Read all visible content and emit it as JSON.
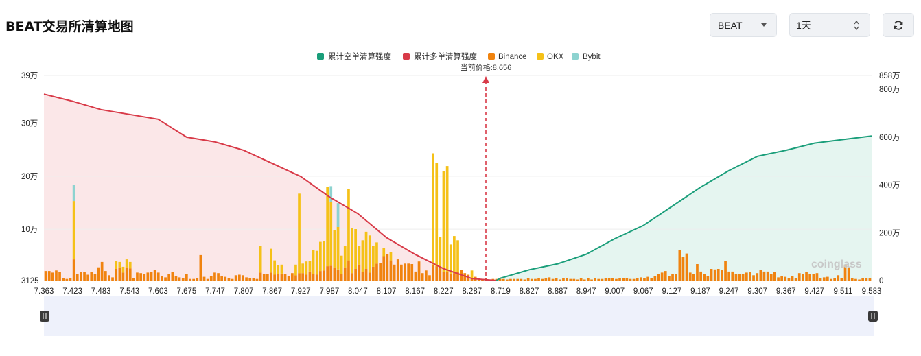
{
  "header": {
    "title": "BEAT交易所清算地图",
    "symbol_select": "BEAT",
    "range_select": "1天"
  },
  "colors": {
    "short_line": "#1a9e7a",
    "long_line": "#d83a48",
    "binance": "#f0830f",
    "okx": "#f5c118",
    "bybit": "#8dd3d0",
    "long_fill": "#fbe4e6",
    "short_fill": "#e2f4ee"
  },
  "chart_data": {
    "type": "bar",
    "current_price_label": "当前价格:8.656",
    "current_price": 8.656,
    "legend": [
      "累计空单清算强度",
      "累计多单清算强度",
      "Binance",
      "OKX",
      "Bybit"
    ],
    "left_axis_ticks": [
      "39万",
      "30万",
      "20万",
      "10万",
      "3125"
    ],
    "left_axis_values": [
      390000,
      300000,
      200000,
      100000,
      3125
    ],
    "right_axis_ticks": [
      "858万",
      "800万",
      "600万",
      "400万",
      "200万",
      "0"
    ],
    "right_axis_values": [
      8580000,
      8000000,
      6000000,
      4000000,
      2000000,
      0
    ],
    "x_tick_labels": [
      "7.363",
      "7.423",
      "7.483",
      "7.543",
      "7.603",
      "7.675",
      "7.747",
      "7.807",
      "7.867",
      "7.927",
      "7.987",
      "8.047",
      "8.107",
      "8.167",
      "8.227",
      "8.287",
      "8.719",
      "8.827",
      "8.887",
      "8.947",
      "9.007",
      "9.067",
      "9.127",
      "9.187",
      "9.247",
      "9.307",
      "9.367",
      "9.427",
      "9.511",
      "9.583"
    ],
    "watermark": "coinglass",
    "series": [
      {
        "name": "Binance",
        "values": [
          18000,
          18000,
          15000,
          19000,
          16000,
          5000,
          3000,
          5000,
          40000,
          12000,
          16000,
          16000,
          11000,
          16000,
          12000,
          25000,
          35000,
          18000,
          10000,
          6000,
          22000,
          25000,
          15000,
          25000,
          23000,
          5000,
          15000,
          14000,
          12000,
          15000,
          16000,
          20000,
          15000,
          8000,
          6000,
          12000,
          16000,
          9000,
          6000,
          5000,
          12000,
          3000,
          3000,
          5000,
          48000,
          7000,
          3000,
          9000,
          15000,
          14000,
          9000,
          7000,
          4000,
          3000,
          10000,
          11000,
          10000,
          6000,
          5000,
          4000,
          3000,
          15000,
          13000,
          13000,
          15000,
          11000,
          12000,
          13000,
          12000,
          9000,
          14000,
          10000,
          14000,
          14000,
          11000,
          17000,
          12000,
          11000,
          18000,
          19000,
          27000,
          28000,
          25000,
          21000,
          12000,
          25000,
          38000,
          14000,
          22000,
          30000,
          16000,
          22000,
          15000,
          26000,
          32000,
          33000,
          46000,
          50000,
          38000,
          30000,
          40000,
          30000,
          32000,
          32000,
          31000,
          17000,
          36000,
          14000,
          19000,
          10000,
          30000,
          27000,
          27000,
          16000,
          16000,
          13000,
          14000,
          16000,
          20000,
          14000,
          11000,
          4000,
          7000,
          4000,
          3000,
          4000,
          2000,
          3000,
          3000,
          3000,
          3000,
          2000,
          3000,
          3000,
          3000,
          3000,
          2000,
          5000,
          3000,
          3000,
          4000,
          3000,
          5000,
          6000,
          3000,
          5000,
          2000,
          4000,
          5000,
          3000,
          3000,
          2000,
          5000,
          2000,
          4000,
          2000,
          5000,
          3000,
          3000,
          4000,
          4000,
          4000,
          3000,
          5000,
          4000,
          5000,
          3000,
          3000,
          4000,
          6000,
          4000,
          7000,
          5000,
          9000,
          12000,
          15000,
          18000,
          9000,
          12000,
          13000,
          58000,
          45000,
          51000,
          15000,
          12000,
          31000,
          17000,
          12000,
          9000,
          22000,
          21000,
          22000,
          20000,
          37000,
          17000,
          17000,
          12000,
          13000,
          13000,
          15000,
          16000,
          10000,
          14000,
          20000,
          17000,
          17000,
          12000,
          16000,
          6000,
          9000,
          7000,
          5000,
          9000,
          4000,
          14000,
          12000,
          16000,
          12000,
          12000,
          14000,
          5000,
          6000,
          7000,
          3000,
          5000,
          10000,
          5000,
          30000,
          25000,
          4000,
          3000,
          2000,
          4000,
          4000,
          5000
        ]
      },
      {
        "name": "OKX",
        "values": [
          0,
          0,
          0,
          0,
          0,
          0,
          0,
          0,
          110000,
          0,
          0,
          0,
          0,
          0,
          0,
          0,
          0,
          0,
          0,
          0,
          15000,
          10000,
          11000,
          15000,
          12000,
          0,
          0,
          0,
          0,
          0,
          0,
          0,
          0,
          0,
          0,
          0,
          0,
          0,
          0,
          0,
          0,
          0,
          0,
          0,
          0,
          0,
          0,
          0,
          0,
          0,
          0,
          0,
          0,
          0,
          0,
          0,
          0,
          0,
          0,
          0,
          0,
          50000,
          0,
          0,
          45000,
          27000,
          17000,
          17000,
          0,
          0,
          0,
          20000,
          150000,
          18000,
          25000,
          20000,
          45000,
          45000,
          55000,
          55000,
          150000,
          120000,
          70000,
          80000,
          35000,
          40000,
          135000,
          85000,
          75000,
          35000,
          60000,
          70000,
          70000,
          40000,
          40000,
          0,
          15000,
          0,
          15000,
          0,
          0,
          0,
          0,
          0,
          0,
          0,
          0,
          0,
          0,
          0,
          210000,
          195000,
          55000,
          190000,
          200000,
          55000,
          70000,
          60000,
          0,
          0,
          0,
          15000,
          0,
          0,
          0,
          0,
          0,
          0,
          0,
          0,
          0,
          0,
          0,
          0,
          0,
          0,
          0,
          0,
          0,
          0,
          0,
          0,
          0,
          0,
          0,
          0,
          0,
          0,
          0,
          0,
          0,
          0,
          0,
          0,
          0,
          0,
          0,
          0,
          0,
          0,
          0,
          0,
          0,
          0,
          0,
          0,
          0,
          0,
          0,
          0,
          0,
          0,
          0,
          0,
          0,
          0,
          0,
          0,
          0,
          0,
          0,
          0,
          0,
          0,
          0,
          0,
          0,
          0,
          0,
          0,
          0,
          0,
          0,
          0,
          0,
          0,
          0,
          0,
          0,
          0,
          0,
          0,
          0,
          0,
          0,
          0,
          0,
          0,
          0,
          0,
          0,
          0,
          0,
          0,
          0,
          0,
          0,
          0,
          0,
          0,
          0,
          0,
          0,
          0,
          0,
          0,
          0,
          0,
          0,
          0,
          0,
          0,
          0,
          0,
          0,
          0,
          0,
          0,
          0,
          0,
          0,
          0,
          0,
          0,
          0,
          0,
          0,
          0,
          0,
          0,
          0,
          0,
          0,
          0,
          0,
          0,
          0,
          0,
          0,
          0,
          0,
          0,
          0,
          0,
          0,
          0,
          0,
          0,
          0,
          0,
          0,
          0,
          0,
          0,
          0,
          0,
          0,
          0,
          0,
          0,
          0,
          0,
          0,
          0,
          0,
          0
        ]
      },
      {
        "name": "Bybit",
        "values": [
          0,
          0,
          0,
          0,
          0,
          0,
          0,
          0,
          30000,
          0,
          0,
          0,
          0,
          0,
          0,
          0,
          0,
          0,
          0,
          0,
          0,
          0,
          0,
          0,
          0,
          0,
          0,
          0,
          0,
          0,
          0,
          0,
          0,
          0,
          0,
          0,
          0,
          0,
          0,
          0,
          0,
          0,
          0,
          0,
          0,
          0,
          0,
          0,
          0,
          0,
          0,
          0,
          0,
          0,
          0,
          0,
          0,
          0,
          0,
          0,
          0,
          0,
          0,
          0,
          0,
          0,
          0,
          0,
          0,
          0,
          0,
          0,
          0,
          0,
          0,
          0,
          0,
          0,
          0,
          0,
          0,
          30000,
          0,
          45000,
          0,
          0,
          0,
          0,
          0,
          0,
          0,
          0,
          0,
          0,
          0,
          0,
          0,
          0,
          0,
          0,
          0,
          0,
          0,
          0,
          0,
          0,
          0,
          0,
          0,
          0,
          0,
          0,
          0,
          0,
          0,
          0,
          0,
          0,
          0,
          0,
          0,
          0,
          0,
          0,
          0,
          0,
          0,
          0,
          0,
          0,
          0,
          0,
          0,
          0,
          0,
          0,
          0,
          0,
          0,
          0,
          0,
          0,
          0,
          0,
          0,
          0,
          0,
          0,
          0,
          0,
          0,
          0,
          0,
          0,
          0,
          0,
          0,
          0,
          0,
          0,
          0,
          0,
          0,
          0,
          0,
          0,
          0,
          0,
          0,
          0,
          0,
          0,
          0,
          0,
          0,
          0,
          0,
          0,
          0,
          0,
          0,
          0,
          0,
          0,
          0,
          0,
          0,
          0,
          0,
          0,
          0,
          0,
          0,
          0,
          0,
          0,
          0,
          0,
          0,
          0,
          0,
          0,
          0,
          0,
          0,
          0,
          0,
          0,
          0,
          0,
          0,
          0,
          0,
          0,
          0,
          0,
          0,
          0,
          0,
          0,
          0,
          0,
          0,
          0,
          0,
          0,
          0,
          0,
          0,
          0,
          0,
          0,
          0,
          0,
          0,
          0,
          0,
          0,
          0,
          0,
          0,
          0,
          0,
          0,
          0,
          0,
          0,
          0,
          0,
          0,
          0,
          0,
          0,
          0,
          0,
          0,
          0,
          0,
          0,
          0,
          0,
          0,
          0,
          0,
          0,
          0,
          0,
          0,
          0,
          0,
          0,
          0,
          0,
          0,
          0,
          0,
          0,
          0,
          0,
          0,
          0,
          0,
          0,
          0,
          0,
          0,
          0
        ]
      }
    ],
    "long_cumulative_points": [
      [
        7.363,
        7800000
      ],
      [
        7.423,
        7500000
      ],
      [
        7.483,
        7150000
      ],
      [
        7.543,
        6950000
      ],
      [
        7.603,
        6750000
      ],
      [
        7.675,
        6000000
      ],
      [
        7.747,
        5800000
      ],
      [
        7.807,
        5450000
      ],
      [
        7.867,
        4900000
      ],
      [
        7.927,
        4350000
      ],
      [
        7.987,
        3500000
      ],
      [
        8.047,
        2800000
      ],
      [
        8.107,
        1800000
      ],
      [
        8.167,
        1100000
      ],
      [
        8.227,
        500000
      ],
      [
        8.287,
        80000
      ],
      [
        8.656,
        0
      ]
    ],
    "short_cumulative_points": [
      [
        8.656,
        0
      ],
      [
        8.719,
        100000
      ],
      [
        8.827,
        450000
      ],
      [
        8.887,
        700000
      ],
      [
        8.947,
        1100000
      ],
      [
        9.007,
        1750000
      ],
      [
        9.067,
        2300000
      ],
      [
        9.127,
        3100000
      ],
      [
        9.187,
        3900000
      ],
      [
        9.247,
        4600000
      ],
      [
        9.307,
        5200000
      ],
      [
        9.367,
        5450000
      ],
      [
        9.427,
        5750000
      ],
      [
        9.511,
        5900000
      ],
      [
        9.583,
        6050000
      ]
    ]
  }
}
